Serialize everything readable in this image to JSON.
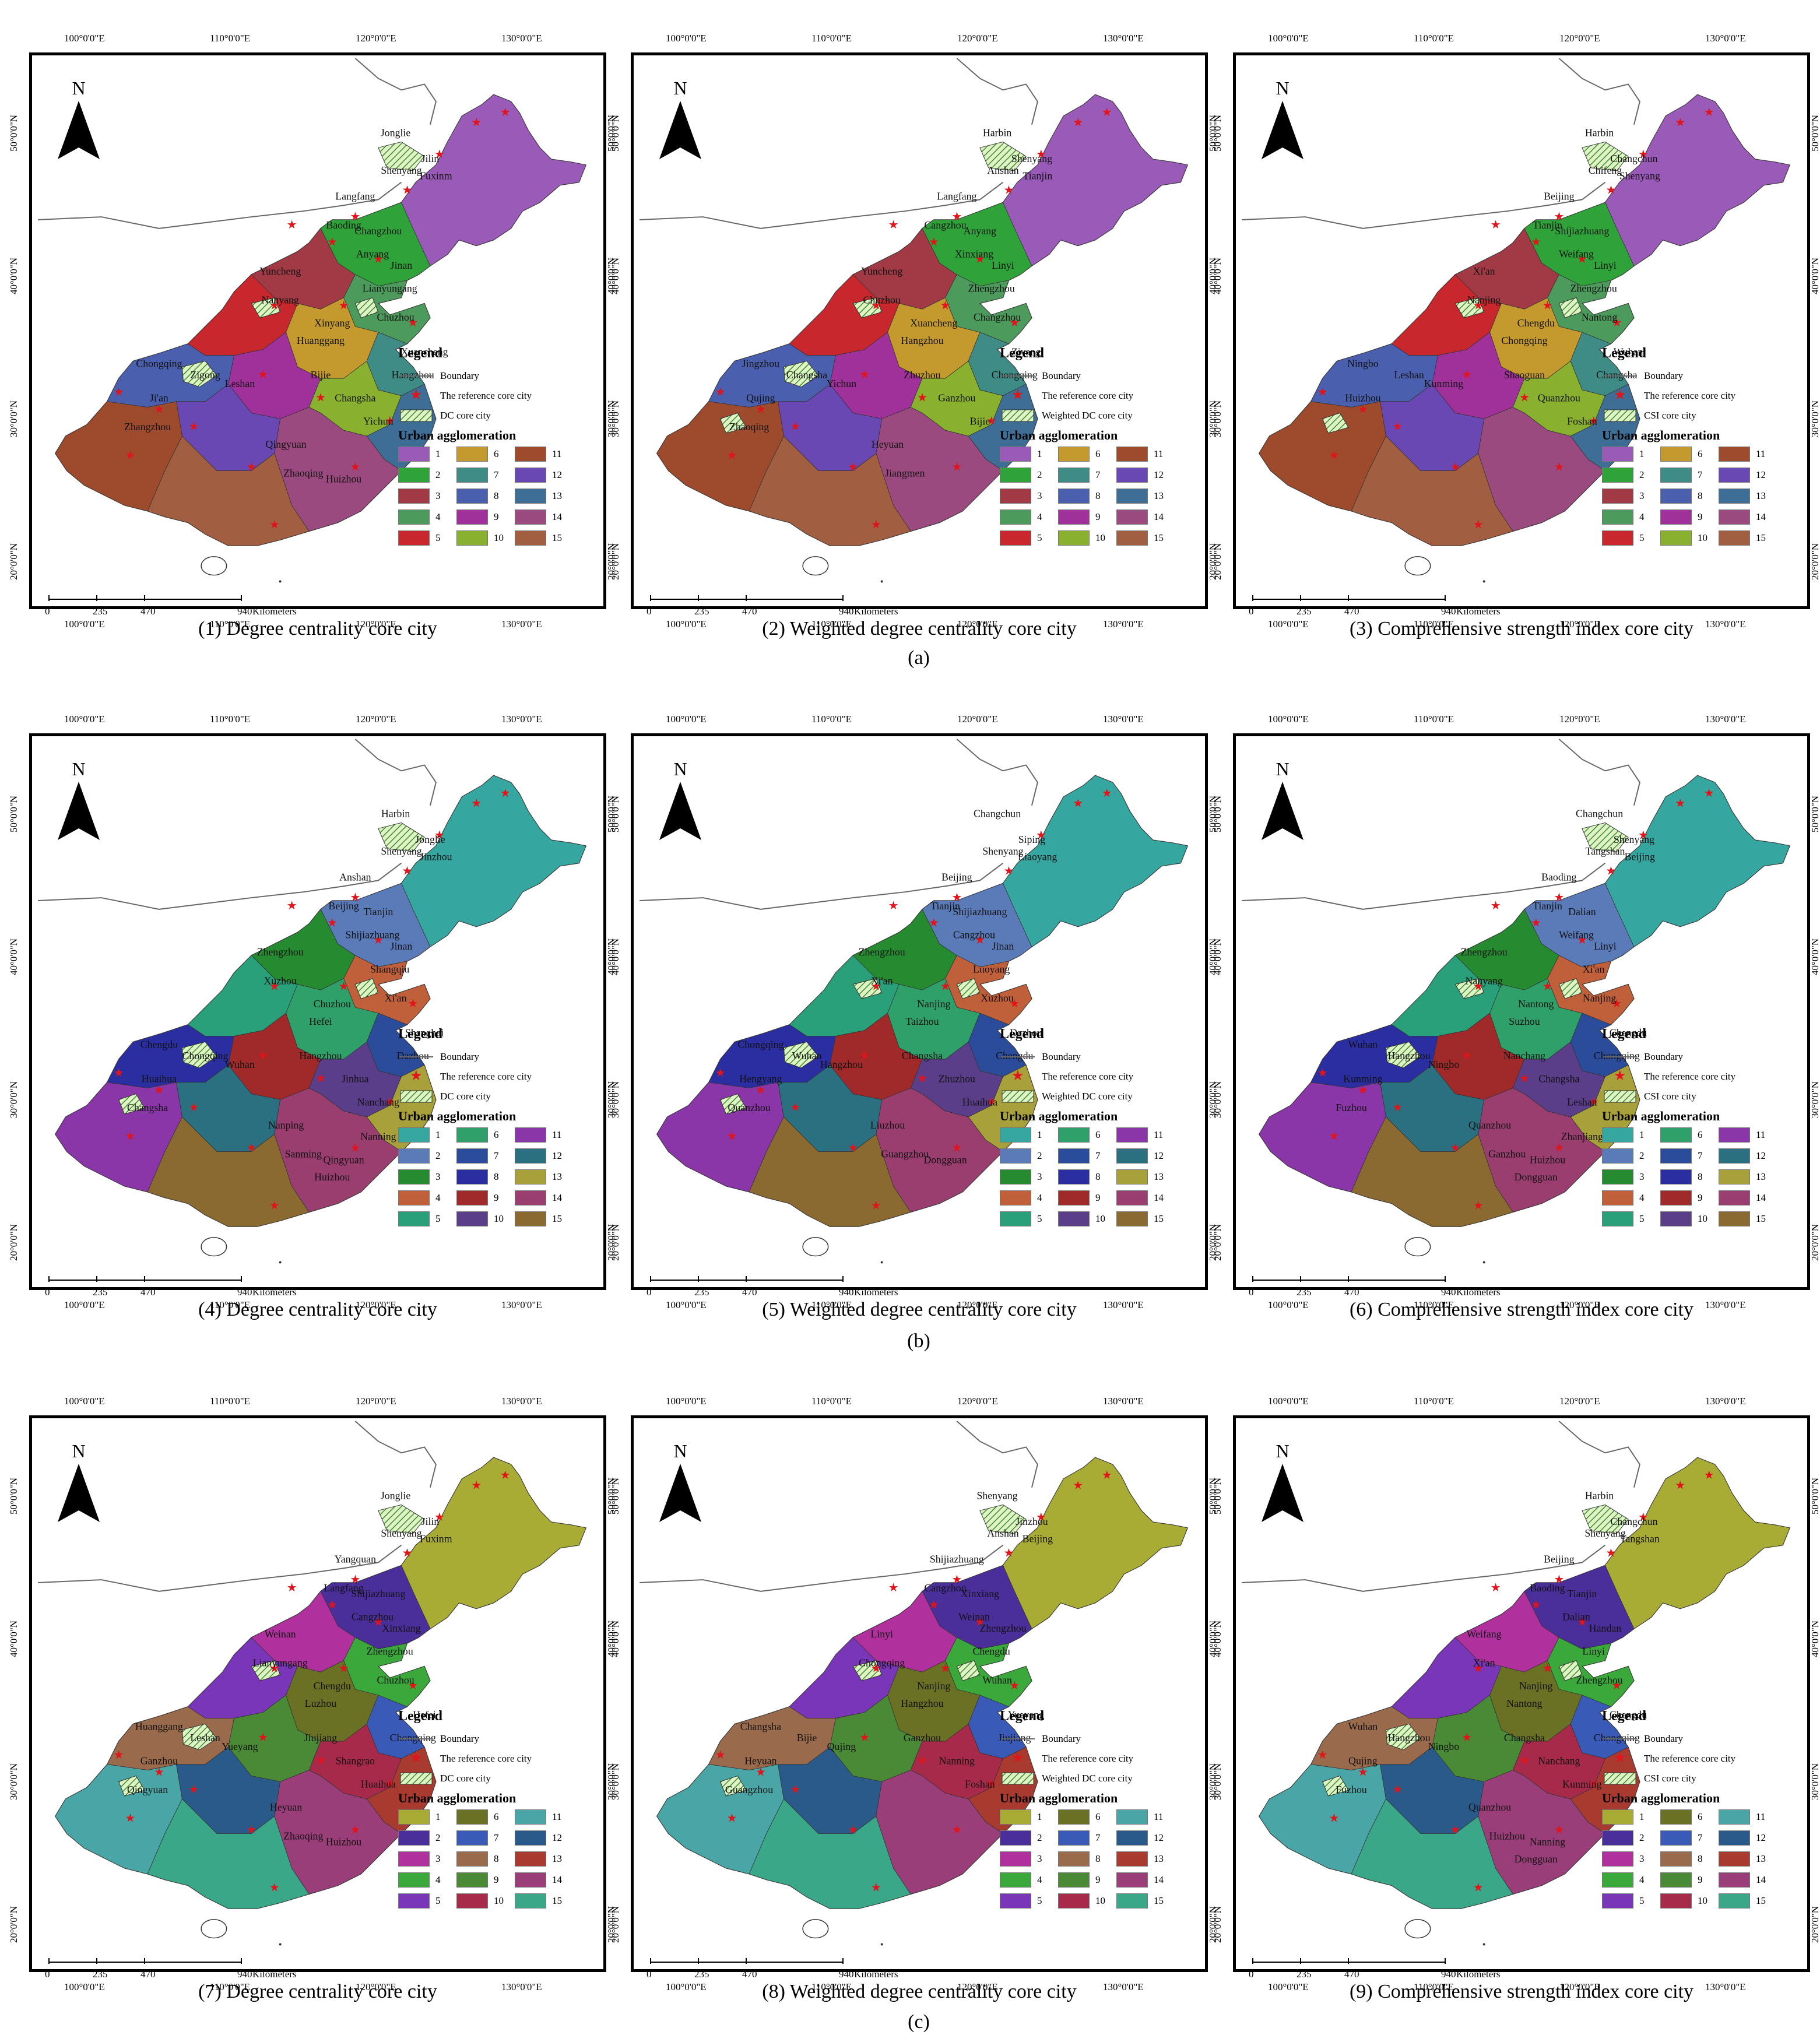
{
  "axes": {
    "top_ticks": [
      "100°0'0\"E",
      "110°0'0\"E",
      "120°0'0\"E",
      "130°0'0\"E"
    ],
    "side_ticks": [
      "50°0'0\"N",
      "40°0'0\"N",
      "30°0'0\"N",
      "20°0'0\"N"
    ]
  },
  "north_label": "N",
  "scale": {
    "labels": [
      "0",
      "235",
      "470",
      "940"
    ],
    "unit": "Kilometers"
  },
  "legend": {
    "title": "Legend",
    "boundary": "Boundary",
    "reference": "The reference core city",
    "ua_title": "Urban agglomeration",
    "class_numbers": [
      "1",
      "2",
      "3",
      "4",
      "5",
      "6",
      "7",
      "8",
      "9",
      "10",
      "11",
      "12",
      "13",
      "14",
      "15"
    ]
  },
  "row_labels": [
    "(a)",
    "(b)",
    "(c)"
  ],
  "palettes": {
    "a": [
      "#9a5ab8",
      "#2fa33a",
      "#a23a46",
      "#4c9a5c",
      "#c8272e",
      "#c49a2e",
      "#3f8c86",
      "#4a5fae",
      "#a0309a",
      "#8ab030",
      "#9e4a2c",
      "#6a48b4",
      "#3e6e96",
      "#9a4a7e",
      "#a25e40"
    ],
    "b": [
      "#36a6a0",
      "#5a7ab8",
      "#268a30",
      "#c0603a",
      "#2aa07a",
      "#30a06a",
      "#2a4c9a",
      "#2a2ea0",
      "#a02a2a",
      "#5a3e8a",
      "#8a36a8",
      "#2a7080",
      "#a8a03a",
      "#9a3e70",
      "#8a6a30"
    ],
    "c": [
      "#a8ac34",
      "#4a2e9a",
      "#b0309e",
      "#3aa83a",
      "#7a36b8",
      "#6a7024",
      "#3a5ab8",
      "#9a6a4c",
      "#4a8a36",
      "#a82a4a",
      "#4aa6a6",
      "#2a5a8a",
      "#a83a30",
      "#9a3e7a",
      "#3aa888"
    ]
  },
  "panels": [
    {
      "caption": "(1) Degree centrality core city",
      "core_label": "DC core city",
      "cities": [
        "Jonglie",
        "Jilin",
        "Shenyang",
        "Fuxinm",
        "Langfang",
        "Baoding",
        "Changzhou",
        "Anyang",
        "Jinan",
        "Yuncheng",
        "Lianyungang",
        "Nanyang",
        "Chuzhou",
        "Xinyang",
        "Huanggang",
        "Xuancheng",
        "Hangzhou",
        "Chongqing",
        "Zigong",
        "Leshan",
        "Bijie",
        "Changsha",
        "Yichun",
        "Ji'an",
        "Zhangzhou",
        "Qingyuan",
        "Zhaoqing",
        "Huizhou"
      ]
    },
    {
      "caption": "(2) Weighted degree centrality core city",
      "core_label": "Weighted DC core city",
      "cities": [
        "Harbin",
        "Shenyang",
        "Anshan",
        "Tianjin",
        "Langfang",
        "Cangzhou",
        "Anyang",
        "Xinxiang",
        "Linyi",
        "Yuncheng",
        "Zhengzhou",
        "Chuzhou",
        "Changzhou",
        "Xuancheng",
        "Hangzhou",
        "Ziyang",
        "Chongqing",
        "Jingzhou",
        "Changsha",
        "Yichun",
        "Zhuzhou",
        "Ganzhou",
        "Bijie",
        "Qujing",
        "Zhaoqing",
        "Heyuan",
        "Jiangmen"
      ]
    },
    {
      "caption": "(3) Comprehensive strength index core city",
      "core_label": "CSI core city",
      "cities": [
        "Harbin",
        "Changchun",
        "Chifeng",
        "Shenyang",
        "Beijing",
        "Tianjin",
        "Shijiazhuang",
        "Weifang",
        "Linyi",
        "Xi'an",
        "Zhengzhou",
        "Nanjing",
        "Nantong",
        "Chengdu",
        "Chongqing",
        "Wuhan",
        "Changsha",
        "Ningbo",
        "Leshan",
        "Kunming",
        "Shaoguan",
        "Quanzhou",
        "Foshan",
        "Huizhou"
      ]
    },
    {
      "caption": "(4) Degree centrality core city",
      "core_label": "DC core city",
      "cities": [
        "Harbin",
        "Jonglie",
        "Shenyang",
        "Jinzhou",
        "Anshan",
        "Beijing",
        "Tianjin",
        "Shijiazhuang",
        "Jinan",
        "Zhengzhou",
        "Shangqiu",
        "Xuzhou",
        "Xi'an",
        "Chuzhou",
        "Hefei",
        "Shanghai",
        "Dazhou",
        "Chengdu",
        "Chongqing",
        "Wuhan",
        "Hangzhou",
        "Jinhua",
        "Nanchang",
        "Huaihua",
        "Changsha",
        "Nanping",
        "Sanming",
        "Qingyuan",
        "Huizhou",
        "Nanning"
      ]
    },
    {
      "caption": "(5) Weighted degree centrality core city",
      "core_label": "Weighted DC core city",
      "cities": [
        "Changchun",
        "Siping",
        "Shenyang",
        "Liaoyang",
        "Beijing",
        "Tianjin",
        "Shijiazhuang",
        "Cangzhou",
        "Jinan",
        "Zhengzhou",
        "Luoyang",
        "Xi'an",
        "Xuzhou",
        "Nanjing",
        "Taizhou",
        "Dazhou",
        "Chengdu",
        "Chongqing",
        "Wuhan",
        "Hangzhou",
        "Changsha",
        "Zhuzhou",
        "Huaihua",
        "Hengyang",
        "Quanzhou",
        "Liuzhou",
        "Guangzhou",
        "Dongguan"
      ]
    },
    {
      "caption": "(6) Comprehensive strength index core city",
      "core_label": "CSI core city",
      "cities": [
        "Changchun",
        "Shenyang",
        "Tangshan",
        "Beijing",
        "Baoding",
        "Tianjin",
        "Dalian",
        "Weifang",
        "Linyi",
        "Zhengzhou",
        "Xi'an",
        "Nanyang",
        "Nanjing",
        "Nantong",
        "Suzhou",
        "Chengdu",
        "Chongqing",
        "Wuhan",
        "Hangzhou",
        "Ningbo",
        "Nanchang",
        "Changsha",
        "Leshan",
        "Kunming",
        "Fuzhou",
        "Quanzhou",
        "Ganzhou",
        "Huizhou",
        "Dongguan",
        "Zhanjiang"
      ]
    },
    {
      "caption": "(7) Degree centrality core city",
      "core_label": "DC core city",
      "cities": [
        "Jonglie",
        "Jilin",
        "Shenyang",
        "Fuxinm",
        "Yangquan",
        "Langfang",
        "Shijiazhuang",
        "Cangzhou",
        "Xinxiang",
        "Weinan",
        "Zhengzhou",
        "Lianyungang",
        "Chuzhou",
        "Chengdu",
        "Luzhou",
        "Hefei",
        "Chongqing",
        "Huanggang",
        "Leshan",
        "Yueyang",
        "Jiujiang",
        "Shangrao",
        "Huaihua",
        "Ganzhou",
        "Qingyuan",
        "Heyuan",
        "Zhaoqing",
        "Huizhou"
      ]
    },
    {
      "caption": "(8) Weighted degree centrality core city",
      "core_label": "Weighted DC core city",
      "cities": [
        "Shenyang",
        "Jinzhou",
        "Anshan",
        "Beijing",
        "Shijiazhuang",
        "Cangzhou",
        "Xinxiang",
        "Weinan",
        "Zhengzhou",
        "Linyi",
        "Chengdu",
        "Chongqing",
        "Wuhan",
        "Nanjing",
        "Hangzhou",
        "Yueyang",
        "Jiujiang",
        "Changsha",
        "Bijie",
        "Qujing",
        "Ganzhou",
        "Nanning",
        "Foshan",
        "Heyuan",
        "Guangzhou"
      ]
    },
    {
      "caption": "(9) Comprehensive strength index core city",
      "core_label": "CSI core city",
      "cities": [
        "Harbin",
        "Changchun",
        "Shenyang",
        "Tangshan",
        "Beijing",
        "Baoding",
        "Tianjin",
        "Dalian",
        "Handan",
        "Weifang",
        "Linyi",
        "Xi'an",
        "Zhengzhou",
        "Nanjing",
        "Nantong",
        "Chengdu",
        "Chongqing",
        "Wuhan",
        "Hangzhou",
        "Ningbo",
        "Changsha",
        "Nanchang",
        "Kunming",
        "Qujing",
        "Fuzhou",
        "Quanzhou",
        "Huizhou",
        "Nanning",
        "Dongguan"
      ]
    }
  ]
}
